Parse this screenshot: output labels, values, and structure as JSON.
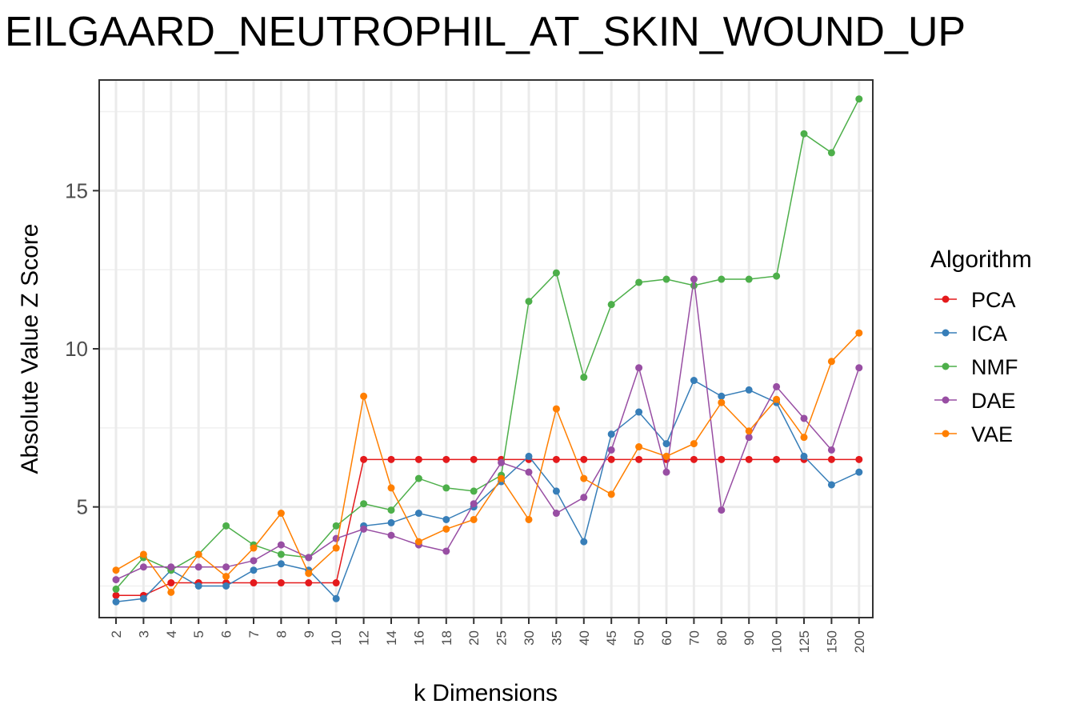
{
  "title": "EILGAARD_NEUTROPHIL_AT_SKIN_WOUND_UP",
  "chart_data": {
    "type": "line",
    "title": "EILGAARD_NEUTROPHIL_AT_SKIN_WOUND_UP",
    "xlabel": "k Dimensions",
    "ylabel": "Absolute Value Z Score",
    "x_type": "categorical",
    "categories": [
      "2",
      "3",
      "4",
      "5",
      "6",
      "7",
      "8",
      "9",
      "10",
      "12",
      "14",
      "16",
      "18",
      "20",
      "25",
      "30",
      "35",
      "40",
      "45",
      "50",
      "60",
      "70",
      "80",
      "90",
      "100",
      "125",
      "150",
      "200"
    ],
    "ylim": [
      1.5,
      18.5
    ],
    "yticks": [
      5,
      10,
      15
    ],
    "grid": true,
    "legend": {
      "title": "Algorithm",
      "placement": "right"
    },
    "series": [
      {
        "name": "PCA",
        "color": "#E41A1C",
        "values": [
          2.2,
          2.2,
          2.6,
          2.6,
          2.6,
          2.6,
          2.6,
          2.6,
          2.6,
          6.5,
          6.5,
          6.5,
          6.5,
          6.5,
          6.5,
          6.5,
          6.5,
          6.5,
          6.5,
          6.5,
          6.5,
          6.5,
          6.5,
          6.5,
          6.5,
          6.5,
          6.5,
          6.5
        ]
      },
      {
        "name": "ICA",
        "color": "#377EB8",
        "values": [
          2.0,
          2.1,
          3.0,
          2.5,
          2.5,
          3.0,
          3.2,
          3.0,
          2.1,
          4.4,
          4.5,
          4.8,
          4.6,
          5.0,
          5.8,
          6.6,
          5.5,
          3.9,
          7.3,
          8.0,
          7.0,
          9.0,
          8.5,
          8.7,
          8.3,
          6.6,
          5.7,
          6.1
        ]
      },
      {
        "name": "NMF",
        "color": "#4DAF4A",
        "values": [
          2.4,
          3.4,
          3.0,
          3.5,
          4.4,
          3.8,
          3.5,
          3.4,
          4.4,
          5.1,
          4.9,
          5.9,
          5.6,
          5.5,
          6.0,
          11.5,
          12.4,
          9.1,
          11.4,
          12.1,
          12.2,
          12.0,
          12.2,
          12.2,
          12.3,
          16.8,
          16.2,
          17.9
        ]
      },
      {
        "name": "DAE",
        "color": "#984EA3",
        "values": [
          2.7,
          3.1,
          3.1,
          3.1,
          3.1,
          3.3,
          3.8,
          3.4,
          4.0,
          4.3,
          4.1,
          3.8,
          3.6,
          5.1,
          6.4,
          6.1,
          4.8,
          5.3,
          6.8,
          9.4,
          6.1,
          12.2,
          4.9,
          7.2,
          8.8,
          7.8,
          6.8,
          9.4
        ]
      },
      {
        "name": "VAE",
        "color": "#FF7F00",
        "values": [
          3.0,
          3.5,
          2.3,
          3.5,
          2.8,
          3.7,
          4.8,
          2.9,
          3.7,
          8.5,
          5.6,
          3.9,
          4.3,
          4.6,
          5.9,
          4.6,
          8.1,
          5.9,
          5.4,
          6.9,
          6.6,
          7.0,
          8.3,
          7.4,
          8.4,
          7.2,
          9.6,
          10.5
        ]
      }
    ]
  }
}
